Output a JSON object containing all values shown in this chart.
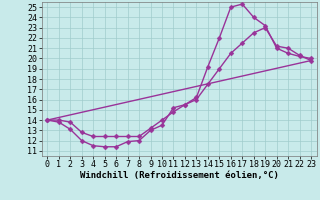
{
  "bg_color": "#c8eaea",
  "line_color": "#993399",
  "markersize": 2.5,
  "linewidth": 1.0,
  "xlim": [
    -0.5,
    23.5
  ],
  "ylim": [
    10.5,
    25.5
  ],
  "xticks": [
    0,
    1,
    2,
    3,
    4,
    5,
    6,
    7,
    8,
    9,
    10,
    11,
    12,
    13,
    14,
    15,
    16,
    17,
    18,
    19,
    20,
    21,
    22,
    23
  ],
  "yticks": [
    11,
    12,
    13,
    14,
    15,
    16,
    17,
    18,
    19,
    20,
    21,
    22,
    23,
    24,
    25
  ],
  "grid_color": "#a0cccc",
  "xlabel": "Windchill (Refroidissement éolien,°C)",
  "xlabel_fontsize": 6.5,
  "tick_fontsize": 6.0,
  "curve1_x": [
    0,
    1,
    2,
    3,
    4,
    5,
    6,
    7,
    8,
    9,
    10,
    11,
    12,
    13,
    14,
    15,
    16,
    17,
    18,
    19,
    20,
    21,
    22,
    23
  ],
  "curve1_y": [
    14.0,
    13.8,
    13.1,
    12.0,
    11.5,
    11.4,
    11.4,
    11.9,
    12.0,
    13.0,
    13.5,
    15.2,
    15.5,
    16.2,
    19.2,
    22.0,
    25.0,
    25.3,
    24.0,
    23.2,
    21.0,
    20.5,
    20.2,
    20.0
  ],
  "curve2_x": [
    0,
    1,
    2,
    3,
    4,
    5,
    6,
    7,
    8,
    9,
    10,
    11,
    12,
    13,
    14,
    15,
    16,
    17,
    18,
    19,
    20,
    21,
    22,
    23
  ],
  "curve2_y": [
    14.0,
    14.0,
    13.8,
    12.8,
    12.4,
    12.4,
    12.4,
    12.4,
    12.4,
    13.2,
    14.0,
    14.8,
    15.5,
    16.0,
    17.5,
    19.0,
    20.5,
    21.5,
    22.5,
    23.0,
    21.2,
    21.0,
    20.3,
    19.8
  ],
  "curve3_x": [
    0,
    23
  ],
  "curve3_y": [
    14.0,
    19.8
  ]
}
